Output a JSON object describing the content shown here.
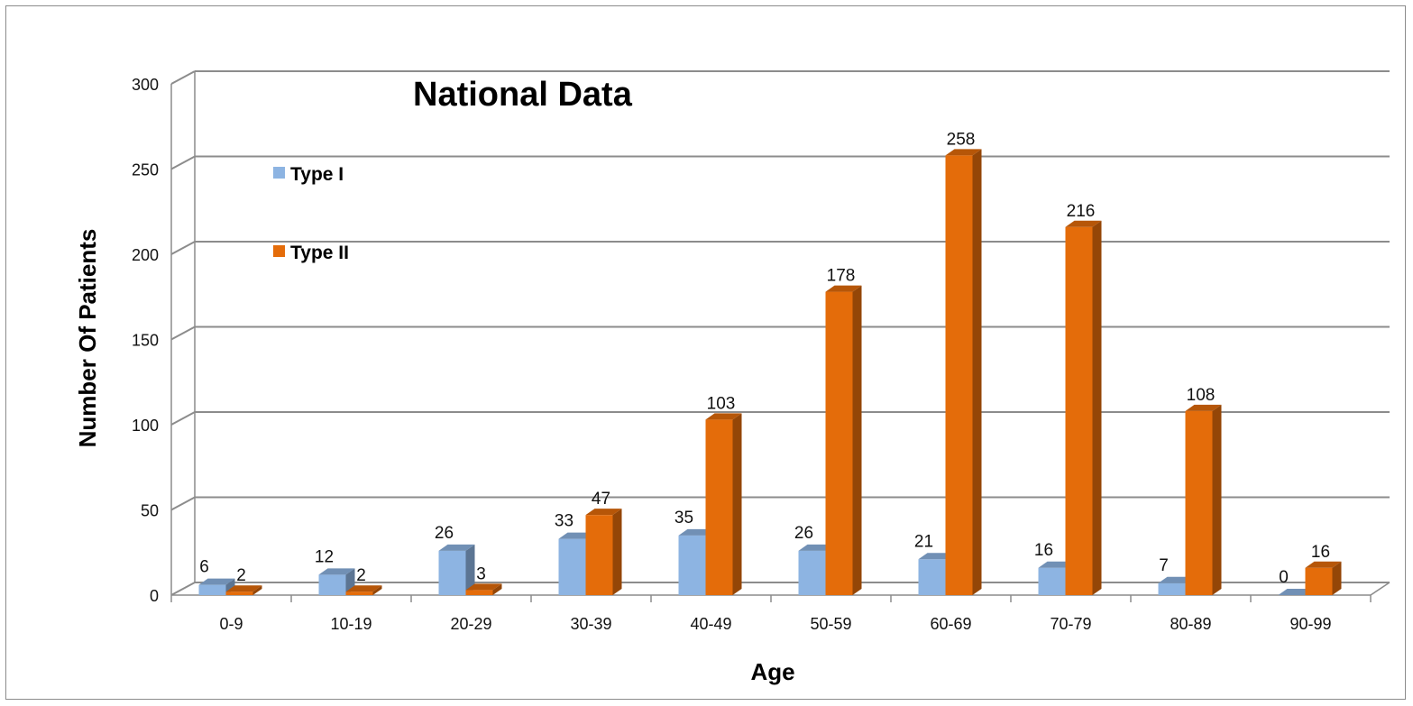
{
  "chart_data": {
    "type": "bar",
    "title": "National Data",
    "xlabel": "Age",
    "ylabel": "Number Of Patients",
    "ylim": [
      0,
      300
    ],
    "yticks": [
      0,
      50,
      100,
      150,
      200,
      250,
      300
    ],
    "grid": true,
    "legend_position": "top-left",
    "categories": [
      "0-9",
      "10-19",
      "20-29",
      "30-39",
      "40-49",
      "50-59",
      "60-69",
      "70-79",
      "80-89",
      "90-99"
    ],
    "series": [
      {
        "name": "Type I",
        "color": "#8DB4E2",
        "values": [
          6,
          12,
          26,
          33,
          35,
          26,
          21,
          16,
          7,
          0
        ]
      },
      {
        "name": "Type II",
        "color": "#E46C0A",
        "values": [
          2,
          2,
          3,
          47,
          103,
          178,
          258,
          216,
          108,
          16
        ]
      }
    ]
  }
}
